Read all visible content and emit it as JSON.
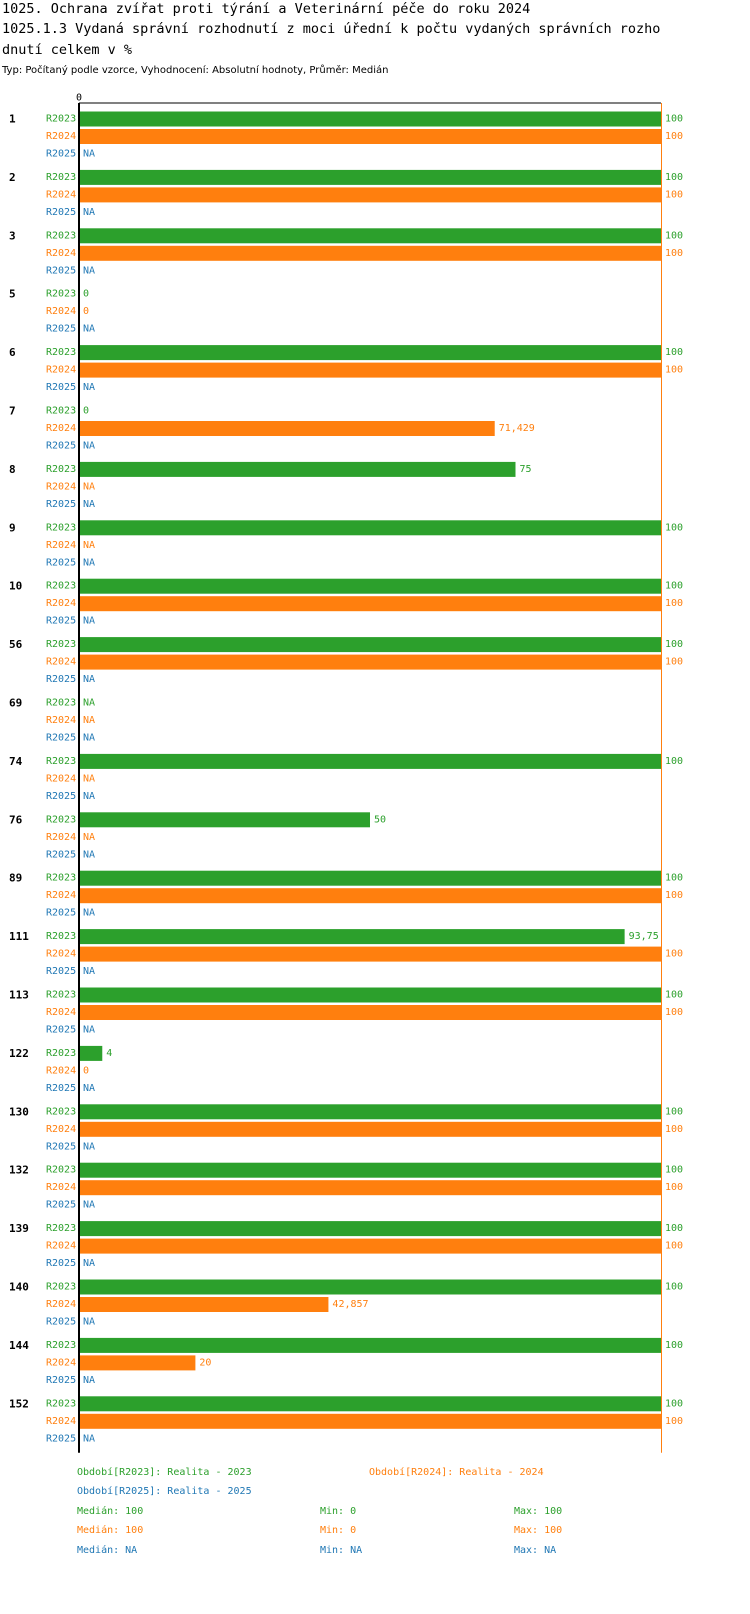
{
  "title_line1": "1025. Ochrana zvířat proti týrání a Veterinární péče do roku 2024",
  "title_line2": "1025.1.3 Vydaná správní rozhodnutí z moci úřední k počtu vydaných správních rozho",
  "title_line3": "dnutí celkem v %",
  "subtitle": "Typ: Počítaný podle vzorce, Vyhodnocení: Absolutní hodnoty, Průměr: Medián",
  "colors": {
    "R2023": "#2ca02c",
    "R2024": "#ff7f0e",
    "R2025": "#1f77b4"
  },
  "chart_data": {
    "type": "bar",
    "orientation": "horizontal",
    "xlim": [
      0,
      100
    ],
    "x_tick_labels": [
      "0"
    ],
    "categories": [
      "1",
      "2",
      "3",
      "5",
      "6",
      "7",
      "8",
      "9",
      "10",
      "56",
      "69",
      "74",
      "76",
      "89",
      "111",
      "113",
      "122",
      "130",
      "132",
      "139",
      "140",
      "144",
      "152"
    ],
    "series": [
      {
        "name": "R2023",
        "values": [
          100,
          100,
          100,
          0,
          100,
          0,
          75,
          100,
          100,
          100,
          null,
          100,
          50,
          100,
          93.75,
          100,
          4,
          100,
          100,
          100,
          100,
          100,
          100
        ],
        "labels": [
          "100",
          "100",
          "100",
          "0",
          "100",
          "0",
          "75",
          "100",
          "100",
          "100",
          "NA",
          "100",
          "50",
          "100",
          "93,75",
          "100",
          "4",
          "100",
          "100",
          "100",
          "100",
          "100",
          "100"
        ]
      },
      {
        "name": "R2024",
        "values": [
          100,
          100,
          100,
          0,
          100,
          71.429,
          null,
          null,
          100,
          100,
          null,
          null,
          null,
          100,
          100,
          100,
          0,
          100,
          100,
          100,
          42.857,
          20,
          100
        ],
        "labels": [
          "100",
          "100",
          "100",
          "0",
          "100",
          "71,429",
          "NA",
          "NA",
          "100",
          "100",
          "NA",
          "NA",
          "NA",
          "100",
          "100",
          "100",
          "0",
          "100",
          "100",
          "100",
          "42,857",
          "20",
          "100"
        ]
      },
      {
        "name": "R2025",
        "values": [
          null,
          null,
          null,
          null,
          null,
          null,
          null,
          null,
          null,
          null,
          null,
          null,
          null,
          null,
          null,
          null,
          null,
          null,
          null,
          null,
          null,
          null,
          null
        ],
        "labels": [
          "NA",
          "NA",
          "NA",
          "NA",
          "NA",
          "NA",
          "NA",
          "NA",
          "NA",
          "NA",
          "NA",
          "NA",
          "NA",
          "NA",
          "NA",
          "NA",
          "NA",
          "NA",
          "NA",
          "NA",
          "NA",
          "NA",
          "NA"
        ]
      }
    ]
  },
  "legend": {
    "r2023": "Období[R2023]: Realita - 2023",
    "r2024": "Období[R2024]: Realita - 2024",
    "r2025": "Období[R2025]: Realita - 2025"
  },
  "stats": [
    {
      "median": "Medián: 100",
      "min": "Min: 0",
      "max": "Max: 100"
    },
    {
      "median": "Medián: 100",
      "min": "Min: 0",
      "max": "Max: 100"
    },
    {
      "median": "Medián: NA",
      "min": "Min: NA",
      "max": "Max: NA"
    }
  ]
}
